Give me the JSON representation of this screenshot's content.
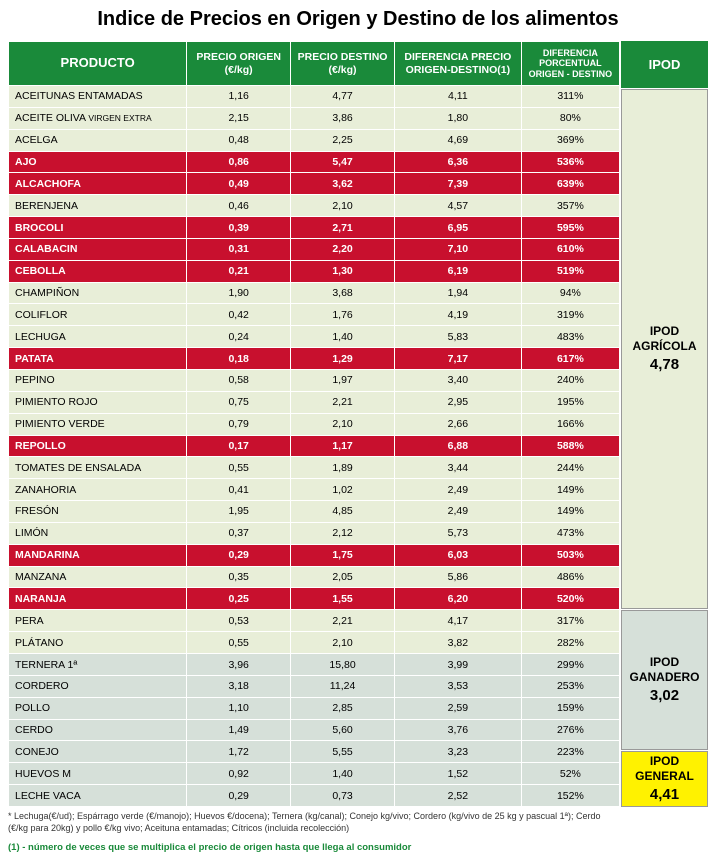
{
  "title": "Indice de Precios en Origen y Destino de los alimentos",
  "headers": {
    "producto": "PRODUCTO",
    "origen": "PRECIO ORIGEN (€/kg)",
    "destino": "PRECIO DESTINO (€/kg)",
    "diferencia": "DIFERENCIA PRECIO ORIGEN-DESTINO(1)",
    "porcentual": "DIFERENCIA PORCENTUAL ORIGEN - DESTINO",
    "ipod": "IPOD"
  },
  "colors": {
    "header_bg": "#1a8a3a",
    "header_fg": "#ffffff",
    "row_normal_bg": "#e8eed8",
    "row_red_bg": "#c8102e",
    "row_red_fg": "#ffffff",
    "row_meat_bg": "#d6e0d9",
    "ipod_general_bg": "#fff200"
  },
  "agri_rows": [
    {
      "n": "ACEITUNAS ENTAMADAS",
      "o": "1,16",
      "d": "4,77",
      "df": "4,11",
      "p": "311%",
      "red": false
    },
    {
      "n": "ACEITE OLIVA",
      "sub": "VIRGEN EXTRA",
      "o": "2,15",
      "d": "3,86",
      "df": "1,80",
      "p": "80%",
      "red": false
    },
    {
      "n": "ACELGA",
      "o": "0,48",
      "d": "2,25",
      "df": "4,69",
      "p": "369%",
      "red": false
    },
    {
      "n": "AJO",
      "o": "0,86",
      "d": "5,47",
      "df": "6,36",
      "p": "536%",
      "red": true
    },
    {
      "n": "ALCACHOFA",
      "o": "0,49",
      "d": "3,62",
      "df": "7,39",
      "p": "639%",
      "red": true
    },
    {
      "n": "BERENJENA",
      "o": "0,46",
      "d": "2,10",
      "df": "4,57",
      "p": "357%",
      "red": false
    },
    {
      "n": "BROCOLI",
      "o": "0,39",
      "d": "2,71",
      "df": "6,95",
      "p": "595%",
      "red": true
    },
    {
      "n": "CALABACIN",
      "o": "0,31",
      "d": "2,20",
      "df": "7,10",
      "p": "610%",
      "red": true
    },
    {
      "n": "CEBOLLA",
      "o": "0,21",
      "d": "1,30",
      "df": "6,19",
      "p": "519%",
      "red": true
    },
    {
      "n": "CHAMPIÑON",
      "o": "1,90",
      "d": "3,68",
      "df": "1,94",
      "p": "94%",
      "red": false
    },
    {
      "n": "COLIFLOR",
      "o": "0,42",
      "d": "1,76",
      "df": "4,19",
      "p": "319%",
      "red": false
    },
    {
      "n": "LECHUGA",
      "o": "0,24",
      "d": "1,40",
      "df": "5,83",
      "p": "483%",
      "red": false
    },
    {
      "n": "PATATA",
      "o": "0,18",
      "d": "1,29",
      "df": "7,17",
      "p": "617%",
      "red": true
    },
    {
      "n": "PEPINO",
      "o": "0,58",
      "d": "1,97",
      "df": "3,40",
      "p": "240%",
      "red": false
    },
    {
      "n": "PIMIENTO ROJO",
      "o": "0,75",
      "d": "2,21",
      "df": "2,95",
      "p": "195%",
      "red": false
    },
    {
      "n": "PIMIENTO VERDE",
      "o": "0,79",
      "d": "2,10",
      "df": "2,66",
      "p": "166%",
      "red": false
    },
    {
      "n": "REPOLLO",
      "o": "0,17",
      "d": "1,17",
      "df": "6,88",
      "p": "588%",
      "red": true
    },
    {
      "n": "TOMATES DE ENSALADA",
      "o": "0,55",
      "d": "1,89",
      "df": "3,44",
      "p": "244%",
      "red": false
    },
    {
      "n": "ZANAHORIA",
      "o": "0,41",
      "d": "1,02",
      "df": "2,49",
      "p": "149%",
      "red": false
    },
    {
      "n": "FRESÓN",
      "o": "1,95",
      "d": "4,85",
      "df": "2,49",
      "p": "149%",
      "red": false
    },
    {
      "n": "LIMÓN",
      "o": "0,37",
      "d": "2,12",
      "df": "5,73",
      "p": "473%",
      "red": false
    },
    {
      "n": "MANDARINA",
      "o": "0,29",
      "d": "1,75",
      "df": "6,03",
      "p": "503%",
      "red": true
    },
    {
      "n": "MANZANA",
      "o": "0,35",
      "d": "2,05",
      "df": "5,86",
      "p": "486%",
      "red": false
    },
    {
      "n": "NARANJA",
      "o": "0,25",
      "d": "1,55",
      "df": "6,20",
      "p": "520%",
      "red": true
    },
    {
      "n": "PERA",
      "o": "0,53",
      "d": "2,21",
      "df": "4,17",
      "p": "317%",
      "red": false
    },
    {
      "n": "PLÁTANO",
      "o": "0,55",
      "d": "2,10",
      "df": "3,82",
      "p": "282%",
      "red": false
    }
  ],
  "meat_rows": [
    {
      "n": "TERNERA 1ª",
      "o": "3,96",
      "d": "15,80",
      "df": "3,99",
      "p": "299%"
    },
    {
      "n": "CORDERO",
      "o": "3,18",
      "d": "11,24",
      "df": "3,53",
      "p": "253%"
    },
    {
      "n": "POLLO",
      "o": "1,10",
      "d": "2,85",
      "df": "2,59",
      "p": "159%"
    },
    {
      "n": "CERDO",
      "o": "1,49",
      "d": "5,60",
      "df": "3,76",
      "p": "276%"
    },
    {
      "n": "CONEJO",
      "o": "1,72",
      "d": "5,55",
      "df": "3,23",
      "p": "223%"
    },
    {
      "n": "HUEVOS M",
      "o": "0,92",
      "d": "1,40",
      "df": "1,52",
      "p": "52%"
    },
    {
      "n": "LECHE VACA",
      "o": "0,29",
      "d": "0,73",
      "df": "2,52",
      "p": "152%"
    }
  ],
  "ipod": {
    "agricola_label": "IPOD AGRÍCOLA",
    "agricola_value": "4,78",
    "ganadero_label": "IPOD GANADERO",
    "ganadero_value": "3,02",
    "general_label": "IPOD GENERAL",
    "general_value": "4,41"
  },
  "footnote1": "* Lechuga(€/ud); Espárrago verde (€/manojo); Huevos €/docena); Ternera (kg/canal); Conejo kg/vivo; Cordero (kg/vivo de 25 kg y pascual 1ª); Cerdo (€/kg para 20kg) y pollo €/kg vivo; Aceituna entamadas; Cítricos (incluida recolección)",
  "footnote2": "(1) - número de veces que se multiplica el precio de origen hasta que llega al consumidor"
}
